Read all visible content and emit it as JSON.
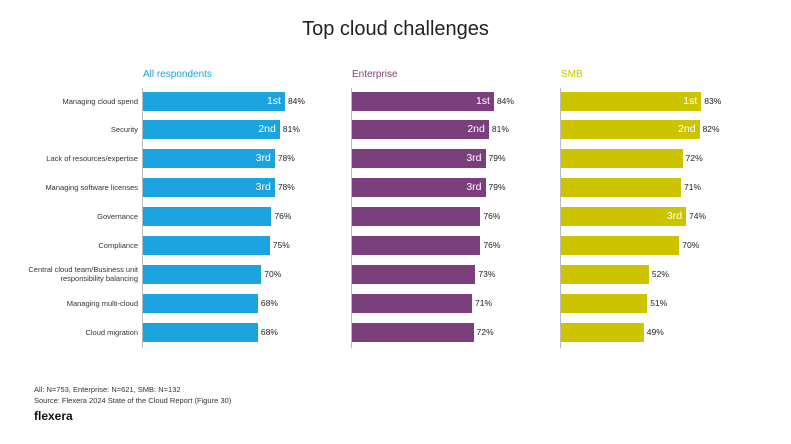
{
  "title": "Top cloud challenges",
  "chart_data": [
    {
      "type": "bar",
      "title": "All respondents",
      "color": "#1aa3de",
      "categories": [
        "Managing cloud spend",
        "Security",
        "Lack of resources/expertise",
        "Managing software licenses",
        "Governance",
        "Compliance",
        "Central cloud team/Business unit\nresponsibility balancing",
        "Managing multi-cloud",
        "Cloud migration"
      ],
      "values": [
        84,
        81,
        78,
        78,
        76,
        75,
        70,
        68,
        68
      ],
      "value_labels": [
        "84%",
        "81%",
        "78%",
        "78%",
        "76%",
        "75%",
        "70%",
        "68%",
        "68%"
      ],
      "ranks": [
        "1st",
        "2nd",
        "3rd",
        "3rd",
        null,
        null,
        null,
        null,
        null
      ]
    },
    {
      "type": "bar",
      "title": "Enterprise",
      "color": "#7c3f7e",
      "values": [
        84,
        81,
        79,
        79,
        76,
        76,
        73,
        71,
        72
      ],
      "value_labels": [
        "84%",
        "81%",
        "79%",
        "79%",
        "76%",
        "76%",
        "73%",
        "71%",
        "72%"
      ],
      "ranks": [
        "1st",
        "2nd",
        "3rd",
        "3rd",
        null,
        null,
        null,
        null,
        null
      ]
    },
    {
      "type": "bar",
      "title": "SMB",
      "color": "#cdc400",
      "values": [
        83,
        82,
        72,
        71,
        74,
        70,
        52,
        51,
        49
      ],
      "value_labels": [
        "83%",
        "82%",
        "72%",
        "71%",
        "74%",
        "70%",
        "52%",
        "51%",
        "49%"
      ],
      "ranks": [
        "1st",
        "2nd",
        null,
        null,
        "3rd",
        null,
        null,
        null,
        null
      ]
    }
  ],
  "footer": {
    "note": "All: N=753, Enterprise: N=621, SMB: N=132",
    "source": "Source: Flexera 2024 State of the Cloud Report (Figure 30)",
    "brand": "flexera"
  }
}
